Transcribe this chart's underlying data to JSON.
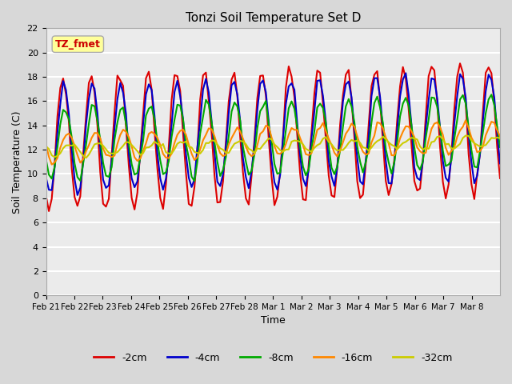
{
  "title": "Tonzi Soil Temperature Set D",
  "xlabel": "Time",
  "ylabel": "Soil Temperature (C)",
  "ylim": [
    0,
    22
  ],
  "yticks": [
    0,
    2,
    4,
    6,
    8,
    10,
    12,
    14,
    16,
    18,
    20,
    22
  ],
  "bg_color": "#d8d8d8",
  "plot_bg_color": "#ebebeb",
  "annotation_text": "TZ_fmet",
  "annotation_color": "#cc0000",
  "annotation_bg": "#ffff99",
  "series_colors": {
    "-2cm": "#dd0000",
    "-4cm": "#0000cc",
    "-8cm": "#00aa00",
    "-16cm": "#ff8800",
    "-32cm": "#cccc00"
  },
  "x_labels": [
    "Feb 21",
    "Feb 22",
    "Feb 23",
    "Feb 24",
    "Feb 25",
    "Feb 26",
    "Feb 27",
    "Feb 28",
    "Mar 1",
    "Mar 2",
    "Mar 3",
    "Mar 4",
    "Mar 5",
    "Mar 6",
    "Mar 7",
    "Mar 8"
  ],
  "n_points": 160
}
